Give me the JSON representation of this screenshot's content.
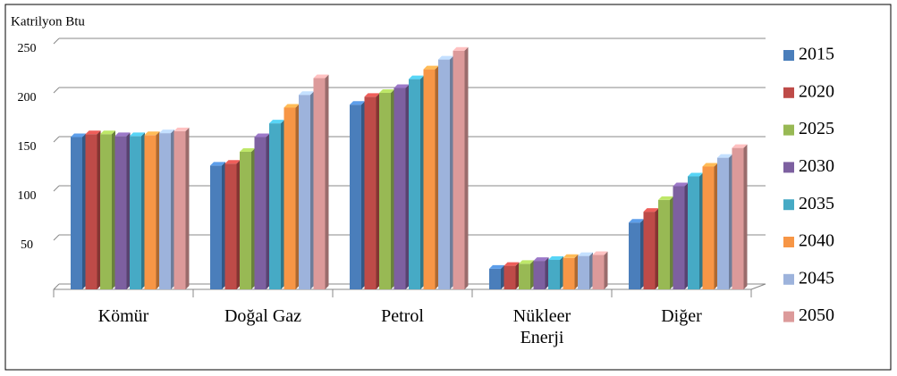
{
  "chart_data": {
    "type": "bar3d",
    "title": "Katrilyon Btu",
    "categories": [
      "Kömür",
      "Doğal Gaz",
      "Petrol",
      "Nükleer Enerji",
      "Diğer"
    ],
    "series": [
      {
        "name": "2015",
        "color": "#4a7ebb",
        "values": [
          155,
          126,
          188,
          21,
          68
        ]
      },
      {
        "name": "2020",
        "color": "#be4b48",
        "values": [
          158,
          128,
          196,
          24,
          79
        ]
      },
      {
        "name": "2025",
        "color": "#98b954",
        "values": [
          158,
          140,
          200,
          26,
          91
        ]
      },
      {
        "name": "2030",
        "color": "#7d60a0",
        "values": [
          156,
          155,
          205,
          29,
          105
        ]
      },
      {
        "name": "2035",
        "color": "#46aac5",
        "values": [
          156,
          169,
          214,
          30,
          115
        ]
      },
      {
        "name": "2040",
        "color": "#f79646",
        "values": [
          157,
          185,
          224,
          32,
          125
        ]
      },
      {
        "name": "2045",
        "color": "#9db3dc",
        "values": [
          159,
          198,
          234,
          34,
          134
        ]
      },
      {
        "name": "2050",
        "color": "#dc9a9a",
        "values": [
          161,
          215,
          243,
          35,
          144
        ]
      }
    ],
    "ylim": [
      0,
      250
    ],
    "yticks": [
      50,
      100,
      150,
      200,
      250
    ],
    "grid": true
  }
}
